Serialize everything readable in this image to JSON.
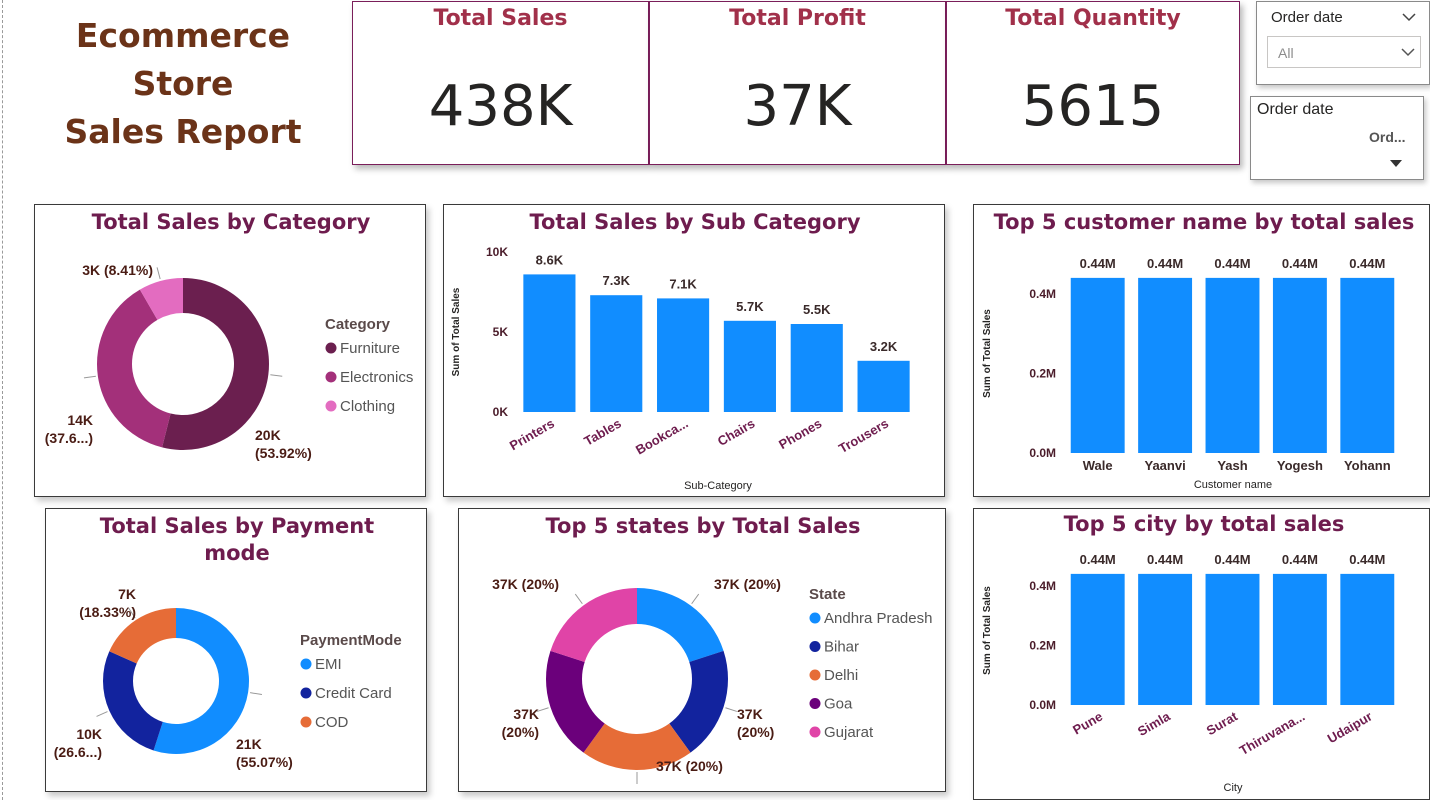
{
  "report": {
    "title_line1": "Ecommerce Store",
    "title_line2": "Sales Report"
  },
  "kpis": [
    {
      "label": "Total Sales",
      "value": "438K"
    },
    {
      "label": "Total Profit",
      "value": "37K"
    },
    {
      "label": "Total Quantity",
      "value": "5615"
    }
  ],
  "slicers": {
    "dropdown": {
      "label": "Order date",
      "value": "All"
    },
    "hierarchy": {
      "label": "Order date",
      "value": "Ord..."
    }
  },
  "colors": {
    "bar": "#118dff",
    "title": "#6e1c4e",
    "furniture": "#6b1f4f",
    "electronics": "#a3307a",
    "clothing": "#e36cc0",
    "emi": "#118dff",
    "credit_card": "#12239e",
    "cod": "#e66c37",
    "andhra": "#118dff",
    "bihar": "#12239e",
    "delhi": "#e66c37",
    "goa": "#6b007b",
    "gujarat": "#e044a7"
  },
  "chart_data": [
    {
      "id": "category",
      "type": "pie",
      "title": "Total Sales by Category",
      "legend_title": "Category",
      "legend_position": "right",
      "slices": [
        {
          "name": "Furniture",
          "value": 20,
          "label": "20K (53.92%)",
          "color": "#6b1f4f"
        },
        {
          "name": "Electronics",
          "value": 14,
          "label": "14K (37.6...)",
          "color": "#a3307a"
        },
        {
          "name": "Clothing",
          "value": 3.1,
          "label": "3K (8.41%)",
          "color": "#e36cc0"
        }
      ]
    },
    {
      "id": "subcategory",
      "type": "bar",
      "title": "Total Sales by Sub Category",
      "xlabel": "Sub-Category",
      "ylabel": "Sum of Total Sales",
      "ylim": [
        0,
        10000
      ],
      "yticks": [
        {
          "v": 0,
          "t": "0K"
        },
        {
          "v": 5000,
          "t": "5K"
        },
        {
          "v": 10000,
          "t": "10K"
        }
      ],
      "categories": [
        "Printers",
        "Tables",
        "Bookca...",
        "Chairs",
        "Phones",
        "Trousers"
      ],
      "values": [
        8600,
        7300,
        7100,
        5700,
        5500,
        3200
      ],
      "labels": [
        "8.6K",
        "7.3K",
        "7.1K",
        "5.7K",
        "5.5K",
        "3.2K"
      ]
    },
    {
      "id": "customers",
      "type": "bar",
      "title": "Top 5 customer name by total sales",
      "xlabel": "Customer name",
      "ylabel": "Sum of Total Sales",
      "ylim": [
        0,
        0.5
      ],
      "yticks": [
        {
          "v": 0,
          "t": "0.0M"
        },
        {
          "v": 0.2,
          "t": "0.2M"
        },
        {
          "v": 0.4,
          "t": "0.4M"
        }
      ],
      "categories": [
        "Wale",
        "Yaanvi",
        "Yash",
        "Yogesh",
        "Yohann"
      ],
      "values": [
        0.44,
        0.44,
        0.44,
        0.44,
        0.44
      ],
      "labels": [
        "0.44M",
        "0.44M",
        "0.44M",
        "0.44M",
        "0.44M"
      ]
    },
    {
      "id": "payment",
      "type": "pie",
      "title": "Total Sales by Payment mode",
      "legend_title": "PaymentMode",
      "legend_position": "right",
      "slices": [
        {
          "name": "EMI",
          "value": 21,
          "label": "21K (55.07%)",
          "color": "#118dff"
        },
        {
          "name": "Credit Card",
          "value": 10.2,
          "label": "10K (26.6...)",
          "color": "#12239e"
        },
        {
          "name": "COD",
          "value": 7,
          "label": "7K (18.33%)",
          "color": "#e66c37"
        }
      ]
    },
    {
      "id": "states",
      "type": "pie",
      "title": "Top 5 states by Total Sales",
      "legend_title": "State",
      "legend_position": "right",
      "slices": [
        {
          "name": "Andhra Pradesh",
          "value": 37,
          "label": "37K (20%)",
          "color": "#118dff"
        },
        {
          "name": "Bihar",
          "value": 37,
          "label": "37K (20%)",
          "color": "#12239e"
        },
        {
          "name": "Delhi",
          "value": 37,
          "label": "37K (20%)",
          "color": "#e66c37"
        },
        {
          "name": "Goa",
          "value": 37,
          "label": "37K (20%)",
          "color": "#6b007b"
        },
        {
          "name": "Gujarat",
          "value": 37,
          "label": "37K (20%)",
          "color": "#e044a7"
        }
      ]
    },
    {
      "id": "cities",
      "type": "bar",
      "title": "Top 5 city by total sales",
      "xlabel": "City",
      "ylabel": "Sum of Total Sales",
      "ylim": [
        0,
        0.5
      ],
      "yticks": [
        {
          "v": 0,
          "t": "0.0M"
        },
        {
          "v": 0.2,
          "t": "0.2M"
        },
        {
          "v": 0.4,
          "t": "0.4M"
        }
      ],
      "categories": [
        "Pune",
        "Simla",
        "Surat",
        "Thiruvana...",
        "Udaipur"
      ],
      "values": [
        0.44,
        0.44,
        0.44,
        0.44,
        0.44
      ],
      "labels": [
        "0.44M",
        "0.44M",
        "0.44M",
        "0.44M",
        "0.44M"
      ]
    }
  ]
}
